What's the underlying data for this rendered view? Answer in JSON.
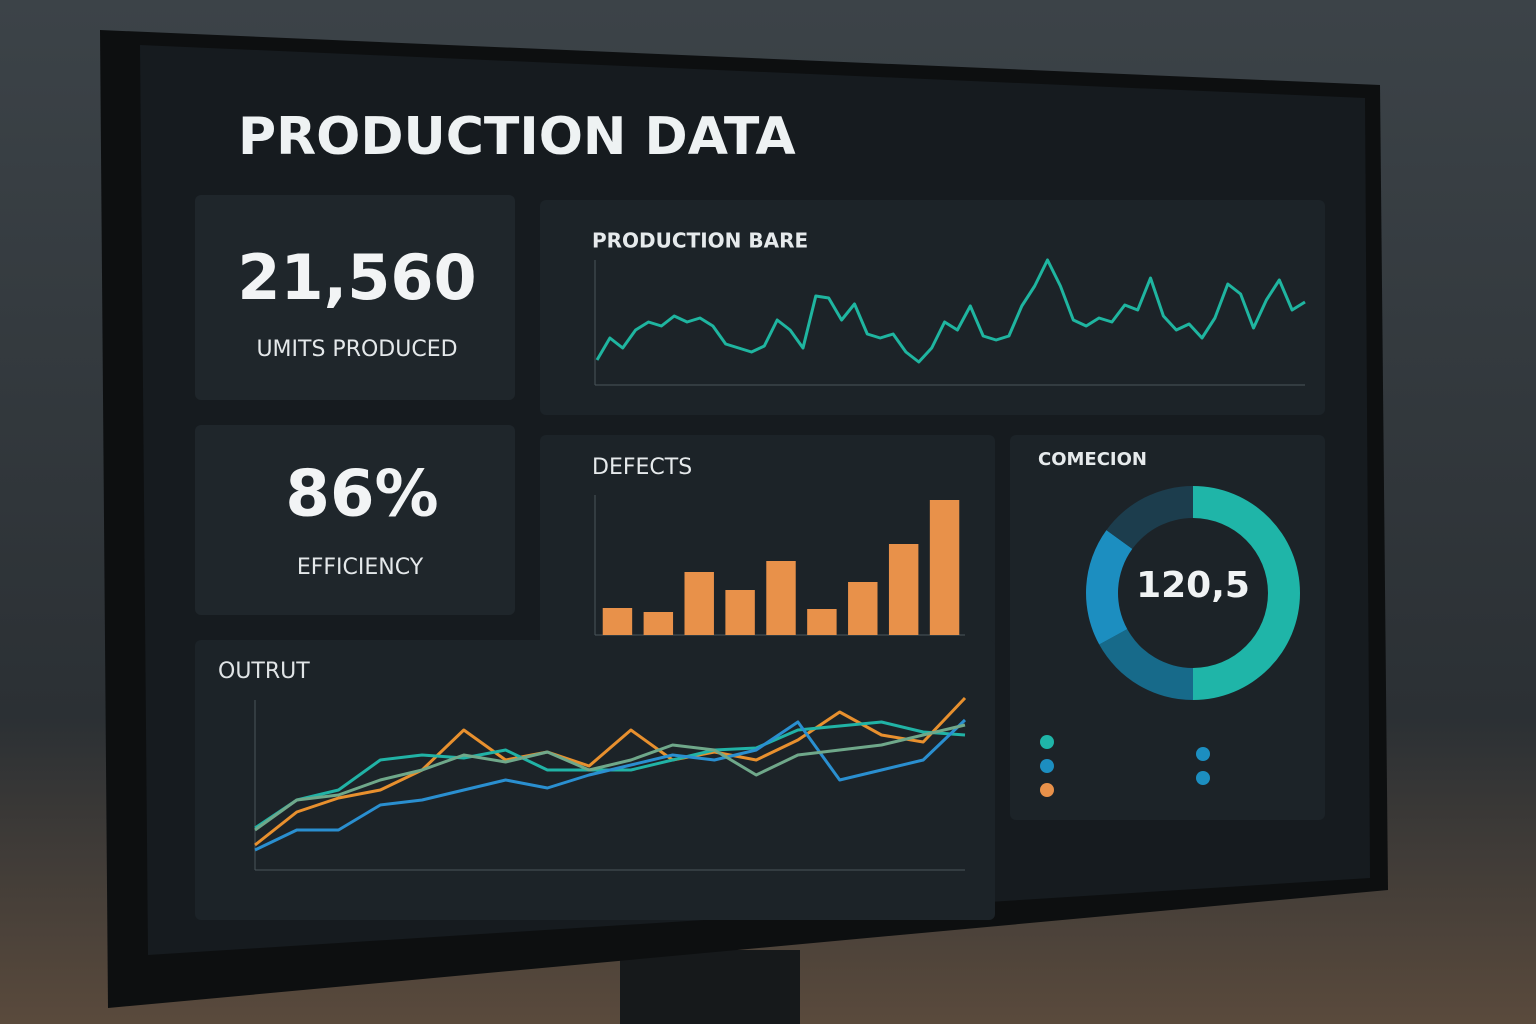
{
  "header": {
    "title": "PRODUCTION DATA"
  },
  "kpis": [
    {
      "value": "21,560",
      "label": "UMITS PRODUCED"
    },
    {
      "value": "86%",
      "label": "EFFICIENCY"
    }
  ],
  "chart_data": [
    {
      "type": "line",
      "title": "PRODUCTION BARE",
      "color": "#1fb5a0",
      "ylim": [
        0,
        130
      ],
      "values": [
        25,
        47,
        37,
        55,
        63,
        59,
        69,
        63,
        67,
        59,
        41,
        37,
        33,
        39,
        65,
        55,
        37,
        89,
        87,
        65,
        81,
        51,
        47,
        51,
        33,
        23,
        37,
        63,
        55,
        79,
        49,
        45,
        49,
        79,
        99,
        125,
        99,
        65,
        59,
        67,
        63,
        80,
        75,
        107,
        69,
        55,
        61,
        47,
        67,
        101,
        91,
        57,
        85,
        105,
        75,
        83
      ]
    },
    {
      "type": "bar",
      "title": "DEFECTS",
      "color": "#e8914a",
      "ylim": [
        0,
        140
      ],
      "values": [
        27,
        23,
        63,
        45,
        74,
        26,
        53,
        91,
        135
      ]
    },
    {
      "type": "pie",
      "title": "COMECION",
      "center_label": "120,5",
      "values": [
        50,
        17,
        18,
        15
      ],
      "colors": [
        "#1fb5a8",
        "#176a8a",
        "#1c8ec0",
        "#1c3d4d"
      ]
    },
    {
      "type": "line",
      "title": "OUTRUT",
      "ylim": [
        0,
        180
      ],
      "series": [
        {
          "color": "#e8902e",
          "values": [
            25,
            58,
            72,
            80,
            100,
            140,
            110,
            118,
            104,
            140,
            110,
            118,
            110,
            130,
            158,
            135,
            128,
            172
          ]
        },
        {
          "color": "#21b3a6",
          "values": [
            42,
            70,
            80,
            110,
            115,
            112,
            120,
            100,
            100,
            100,
            110,
            120,
            122,
            140,
            144,
            148,
            138,
            135
          ]
        },
        {
          "color": "#2a8fd0",
          "values": [
            20,
            40,
            40,
            65,
            70,
            80,
            90,
            82,
            95,
            105,
            115,
            110,
            120,
            148,
            90,
            100,
            110,
            150
          ]
        },
        {
          "color": "#6fa88a",
          "values": [
            40,
            70,
            75,
            90,
            100,
            115,
            108,
            118,
            100,
            110,
            125,
            120,
            95,
            115,
            120,
            125,
            135,
            145
          ]
        }
      ]
    }
  ]
}
